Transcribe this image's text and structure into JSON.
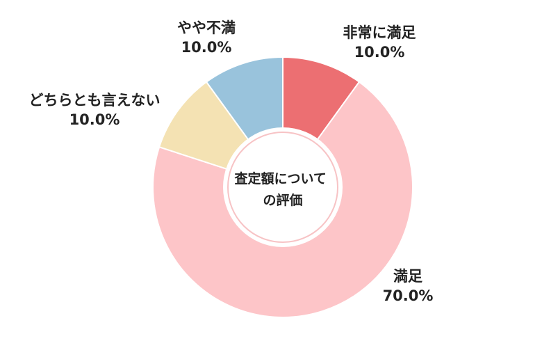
{
  "chart_data": {
    "type": "pie",
    "title": "査定額についての評価",
    "title_lines": [
      "査定額について",
      "の評価"
    ],
    "value_unit": "%",
    "slices": [
      {
        "label": "非常に満足",
        "value": 10.0,
        "display": "10.0%",
        "color": "#ec6f72"
      },
      {
        "label": "満足",
        "value": 70.0,
        "display": "70.0%",
        "color": "#fdc5c8"
      },
      {
        "label": "どちらとも言えない",
        "value": 10.0,
        "display": "10.0%",
        "color": "#f4e2b3"
      },
      {
        "label": "やや不満",
        "value": 10.0,
        "display": "10.0%",
        "color": "#99c3dc"
      }
    ],
    "start": "12 o'clock",
    "direction": "clockwise",
    "legend": "none"
  }
}
